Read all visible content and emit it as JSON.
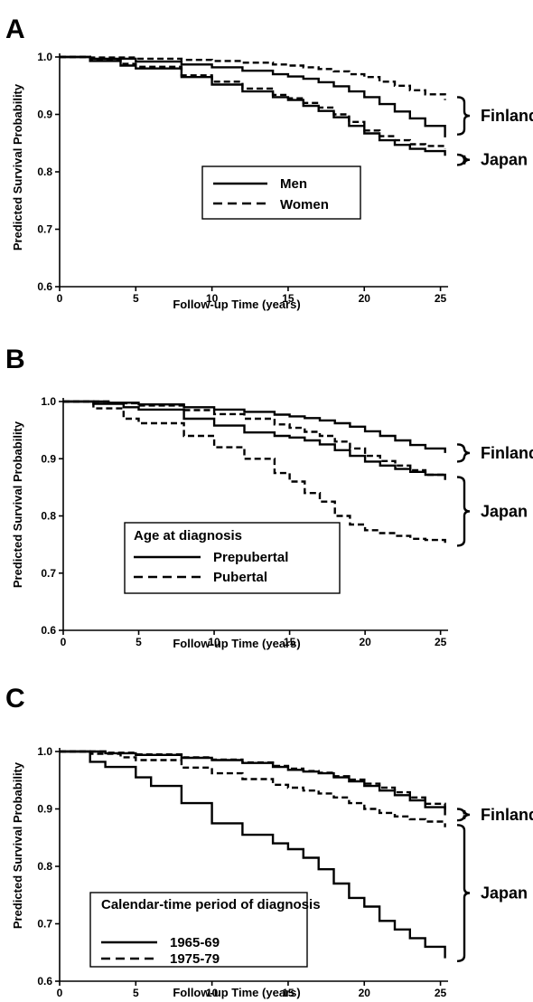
{
  "chart_data": [
    {
      "type": "line",
      "panel": "A",
      "xlabel": "Follow-up Time (years)",
      "ylabel": "Predicted Survival Probability",
      "xlim": [
        0,
        25.5
      ],
      "ylim": [
        0.6,
        1.0
      ],
      "xticks": [
        "0",
        "5",
        "10",
        "15",
        "20",
        "25"
      ],
      "yticks": [
        "0.6",
        "0.7",
        "0.8",
        "0.9",
        "1.0"
      ],
      "legend": {
        "position": "center",
        "title": "",
        "entries": [
          {
            "label": "Men",
            "style": "solid"
          },
          {
            "label": "Women",
            "style": "dashed"
          }
        ]
      },
      "groups": [
        {
          "label": "Finland",
          "range": [
            0.865,
            0.93
          ]
        },
        {
          "label": "Japan",
          "range": [
            0.812,
            0.83
          ]
        }
      ],
      "series": [
        {
          "style": "solid",
          "x": [
            0,
            2,
            5,
            8,
            10,
            12,
            14,
            15,
            16,
            17,
            18,
            19,
            20,
            21,
            22,
            23,
            24,
            25.3
          ],
          "values": [
            1.0,
            0.997,
            0.992,
            0.987,
            0.982,
            0.976,
            0.97,
            0.966,
            0.962,
            0.956,
            0.949,
            0.94,
            0.93,
            0.918,
            0.905,
            0.893,
            0.88,
            0.86
          ]
        },
        {
          "style": "dashed",
          "x": [
            0,
            2,
            5,
            8,
            10,
            12,
            14,
            15,
            16,
            17,
            18,
            19,
            20,
            21,
            22,
            23,
            24,
            25.3
          ],
          "values": [
            1.0,
            0.999,
            0.997,
            0.995,
            0.993,
            0.99,
            0.987,
            0.985,
            0.982,
            0.979,
            0.975,
            0.97,
            0.965,
            0.957,
            0.95,
            0.942,
            0.935,
            0.925
          ]
        },
        {
          "style": "solid",
          "x": [
            0,
            2,
            4,
            5,
            8,
            10,
            12,
            14,
            15,
            16,
            17,
            18,
            19,
            20,
            21,
            22,
            23,
            24,
            25.3
          ],
          "values": [
            1.0,
            0.993,
            0.985,
            0.98,
            0.965,
            0.952,
            0.94,
            0.93,
            0.925,
            0.915,
            0.906,
            0.895,
            0.88,
            0.867,
            0.855,
            0.847,
            0.84,
            0.836,
            0.828
          ]
        },
        {
          "style": "dashed",
          "x": [
            0,
            2,
            4,
            5,
            8,
            10,
            12,
            14,
            15,
            16,
            17,
            18,
            19,
            20,
            21,
            22,
            23,
            24,
            25.3
          ],
          "values": [
            1.0,
            0.995,
            0.988,
            0.983,
            0.968,
            0.957,
            0.945,
            0.934,
            0.928,
            0.92,
            0.912,
            0.9,
            0.887,
            0.872,
            0.862,
            0.855,
            0.848,
            0.845,
            0.84
          ]
        }
      ]
    },
    {
      "type": "line",
      "panel": "B",
      "xlabel": "Follow-up Time (years)",
      "ylabel": "Predicted Survival Probability",
      "xlim": [
        0,
        25.5
      ],
      "ylim": [
        0.6,
        1.0
      ],
      "xticks": [
        "0",
        "5",
        "10",
        "15",
        "20",
        "25"
      ],
      "yticks": [
        "0.6",
        "0.7",
        "0.8",
        "0.9",
        "1.0"
      ],
      "legend": {
        "position": "lower-left",
        "title": "Age at diagnosis",
        "entries": [
          {
            "label": "Prepubertal",
            "style": "solid"
          },
          {
            "label": "Pubertal",
            "style": "dashed"
          }
        ]
      },
      "groups": [
        {
          "label": "Finland",
          "range": [
            0.895,
            0.925
          ]
        },
        {
          "label": "Japan",
          "range": [
            0.748,
            0.868
          ]
        }
      ],
      "series": [
        {
          "style": "solid",
          "x": [
            0,
            3,
            5,
            8,
            10,
            12,
            14,
            15,
            16,
            17,
            18,
            19,
            20,
            21,
            22,
            23,
            24,
            25.3
          ],
          "values": [
            1.0,
            0.998,
            0.995,
            0.99,
            0.986,
            0.982,
            0.977,
            0.974,
            0.971,
            0.967,
            0.962,
            0.956,
            0.948,
            0.94,
            0.932,
            0.924,
            0.918,
            0.91
          ]
        },
        {
          "style": "dashed",
          "x": [
            0,
            3,
            5,
            8,
            10,
            12,
            14,
            15,
            16,
            17,
            18,
            19,
            20,
            21,
            22,
            23,
            24,
            25.3
          ],
          "values": [
            1.0,
            0.997,
            0.993,
            0.985,
            0.978,
            0.97,
            0.96,
            0.954,
            0.947,
            0.94,
            0.93,
            0.918,
            0.905,
            0.896,
            0.888,
            0.88,
            0.872,
            0.863
          ]
        },
        {
          "style": "solid",
          "x": [
            0,
            2,
            4,
            5,
            8,
            10,
            12,
            14,
            15,
            16,
            17,
            18,
            19,
            20,
            21,
            22,
            23,
            24,
            25.3
          ],
          "values": [
            1.0,
            0.996,
            0.99,
            0.986,
            0.97,
            0.958,
            0.946,
            0.94,
            0.937,
            0.932,
            0.925,
            0.915,
            0.905,
            0.895,
            0.888,
            0.882,
            0.877,
            0.872,
            0.867
          ]
        },
        {
          "style": "dashed",
          "x": [
            0,
            2,
            4,
            5,
            8,
            10,
            12,
            14,
            15,
            16,
            17,
            18,
            19,
            20,
            21,
            22,
            23,
            24,
            25.3
          ],
          "values": [
            1.0,
            0.988,
            0.97,
            0.962,
            0.94,
            0.92,
            0.9,
            0.875,
            0.86,
            0.84,
            0.825,
            0.8,
            0.785,
            0.775,
            0.77,
            0.765,
            0.76,
            0.758,
            0.75
          ]
        }
      ]
    },
    {
      "type": "line",
      "panel": "C",
      "xlabel": "Follow-up Time (years)",
      "ylabel": "Predicted Survival Probability",
      "xlim": [
        0,
        25.5
      ],
      "ylim": [
        0.6,
        1.0
      ],
      "xticks": [
        "0",
        "5",
        "10",
        "15",
        "20",
        "25"
      ],
      "yticks": [
        "0.6",
        "0.7",
        "0.8",
        "0.9",
        "1.0"
      ],
      "legend": {
        "position": "lower-left",
        "title": "Calendar-time period of diagnosis",
        "entries": [
          {
            "label": "1965-69",
            "style": "solid"
          },
          {
            "label": "1975-79",
            "style": "dashed"
          }
        ]
      },
      "groups": [
        {
          "label": "Finland",
          "range": [
            0.88,
            0.9
          ]
        },
        {
          "label": "Japan",
          "range": [
            0.635,
            0.872
          ]
        }
      ],
      "series": [
        {
          "style": "solid",
          "x": [
            0,
            3,
            5,
            8,
            10,
            12,
            14,
            15,
            16,
            17,
            18,
            19,
            20,
            21,
            22,
            23,
            24,
            25.3
          ],
          "values": [
            1.0,
            0.997,
            0.994,
            0.989,
            0.985,
            0.98,
            0.973,
            0.968,
            0.965,
            0.962,
            0.955,
            0.948,
            0.94,
            0.932,
            0.924,
            0.915,
            0.903,
            0.889
          ]
        },
        {
          "style": "dashed",
          "x": [
            0,
            3,
            5,
            8,
            10,
            12,
            14,
            15,
            16,
            17,
            18,
            19,
            20,
            21,
            22,
            23,
            24,
            25.3
          ],
          "values": [
            1.0,
            0.998,
            0.995,
            0.99,
            0.986,
            0.981,
            0.975,
            0.97,
            0.966,
            0.963,
            0.957,
            0.951,
            0.944,
            0.937,
            0.929,
            0.92,
            0.909,
            0.894
          ]
        },
        {
          "style": "solid",
          "x": [
            0,
            2,
            3,
            5,
            6,
            8,
            10,
            12,
            14,
            15,
            16,
            17,
            18,
            19,
            20,
            21,
            22,
            23,
            24,
            25.3
          ],
          "values": [
            1.0,
            0.982,
            0.973,
            0.955,
            0.94,
            0.91,
            0.875,
            0.855,
            0.84,
            0.83,
            0.815,
            0.795,
            0.77,
            0.745,
            0.73,
            0.705,
            0.69,
            0.675,
            0.66,
            0.64
          ]
        },
        {
          "style": "dashed",
          "x": [
            0,
            2,
            4,
            5,
            8,
            10,
            12,
            14,
            15,
            16,
            17,
            18,
            19,
            20,
            21,
            22,
            23,
            24,
            25.3
          ],
          "values": [
            1.0,
            0.996,
            0.99,
            0.985,
            0.972,
            0.962,
            0.952,
            0.942,
            0.937,
            0.932,
            0.927,
            0.92,
            0.91,
            0.9,
            0.893,
            0.887,
            0.882,
            0.878,
            0.868
          ]
        }
      ]
    }
  ]
}
